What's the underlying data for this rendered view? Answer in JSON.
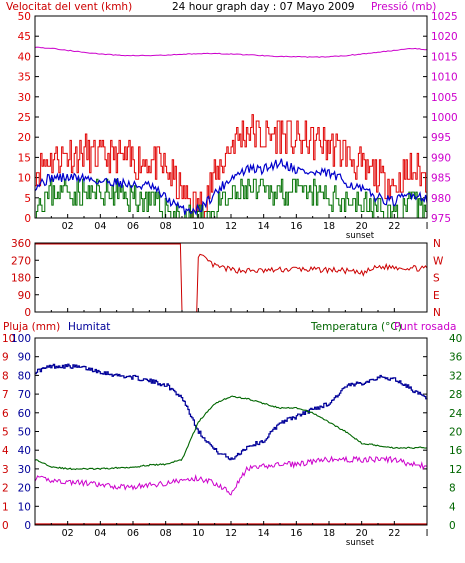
{
  "header": {
    "left_title": "Velocitat del vent (kmh)",
    "center_title": "24 hour graph day : 07 Mayo 2009",
    "right_title": "Pressió (mb)"
  },
  "colors": {
    "wind_gust": "#e00000",
    "wind_avg": "#0000cc",
    "wind_min": "#007000",
    "pressure": "#cc00cc",
    "wind_dir": "#cc0000",
    "humidity": "#000099",
    "temperature": "#006600",
    "dew_point": "#cc00cc",
    "rain": "#cc0000",
    "frame": "#000000",
    "background": "#ffffff"
  },
  "x_axis": {
    "tick_labels": [
      "02",
      "04",
      "06",
      "08",
      "10",
      "12",
      "14",
      "16",
      "18",
      "20",
      "22"
    ],
    "end_marker": "I",
    "sunset_label": "sunset"
  },
  "chart_data": [
    {
      "type": "line",
      "id": "wind-pressure",
      "title": "24 hour graph day : 07 Mayo 2009",
      "ylabel": "Velocitat del vent (kmh)",
      "y2label": "Pressió (mb)",
      "ylim": [
        0,
        50
      ],
      "y2lim": [
        975,
        1025
      ],
      "yticks": [
        0,
        5,
        10,
        15,
        20,
        25,
        30,
        35,
        40,
        45,
        50
      ],
      "y2ticks": [
        975,
        980,
        985,
        990,
        995,
        1000,
        1005,
        1010,
        1015,
        1020,
        1025
      ],
      "x_hours": [
        0,
        1,
        2,
        3,
        4,
        5,
        6,
        7,
        8,
        9,
        10,
        11,
        12,
        13,
        14,
        15,
        16,
        17,
        18,
        19,
        20,
        21,
        22,
        23,
        24
      ],
      "series": [
        {
          "key": "gust",
          "values": [
            12,
            15,
            16,
            16,
            15,
            15,
            14,
            14,
            12,
            6,
            3,
            10,
            18,
            22,
            20,
            21,
            19,
            19,
            18,
            16,
            12,
            10,
            8,
            12,
            10
          ],
          "axis": "left"
        },
        {
          "key": "avg",
          "values": [
            8,
            10,
            10,
            10,
            9,
            9,
            8,
            8,
            5,
            2,
            2,
            6,
            10,
            12,
            12,
            14,
            12,
            11,
            11,
            9,
            7,
            5,
            4,
            6,
            5
          ],
          "axis": "left"
        },
        {
          "key": "min",
          "values": [
            4,
            6,
            7,
            6,
            6,
            6,
            5,
            4,
            2,
            0,
            0,
            2,
            5,
            7,
            6,
            7,
            6,
            6,
            5,
            5,
            3,
            2,
            1,
            3,
            2
          ],
          "axis": "left"
        },
        {
          "key": "pressure",
          "values": [
            1017.3,
            1017.0,
            1016.5,
            1016.0,
            1015.6,
            1015.3,
            1015.2,
            1015.2,
            1015.3,
            1015.5,
            1015.7,
            1015.7,
            1015.6,
            1015.4,
            1015.2,
            1015.0,
            1014.9,
            1014.8,
            1014.9,
            1015.2,
            1015.6,
            1016.0,
            1016.5,
            1017.0,
            1016.7
          ],
          "axis": "right"
        }
      ]
    },
    {
      "type": "line",
      "id": "wind-direction",
      "ylim": [
        0,
        360
      ],
      "yticks": [
        0,
        90,
        180,
        270,
        360
      ],
      "y2ticks": [
        "N",
        "W",
        "S",
        "E",
        "N"
      ],
      "x_hours": [
        0,
        1,
        2,
        3,
        4,
        5,
        6,
        7,
        8,
        9,
        9.5,
        10,
        11,
        12,
        13,
        14,
        15,
        16,
        17,
        18,
        19,
        20,
        21,
        22,
        23,
        24
      ],
      "series": [
        {
          "key": "direction",
          "values": [
            355,
            355,
            355,
            355,
            355,
            355,
            355,
            355,
            355,
            355,
            0,
            300,
            240,
            220,
            215,
            215,
            220,
            225,
            220,
            220,
            215,
            200,
            235,
            235,
            230,
            225
          ]
        }
      ]
    },
    {
      "type": "line",
      "id": "temp-humidity",
      "ylabel": "Pluja (mm)",
      "ylabel2": "Humitat",
      "y2label": "Temperatura (°C)",
      "y2label2": "Punt rosada",
      "ylim": [
        0,
        100
      ],
      "y2lim": [
        0,
        40
      ],
      "yticks_rain": [
        0,
        1,
        2,
        3,
        4,
        5,
        6,
        7,
        8,
        9,
        10
      ],
      "yticks_hum": [
        0,
        10,
        20,
        30,
        40,
        50,
        60,
        70,
        80,
        90,
        100
      ],
      "y2ticks": [
        0,
        4,
        8,
        12,
        16,
        20,
        24,
        28,
        32,
        36,
        40
      ],
      "x_hours": [
        0,
        1,
        2,
        3,
        4,
        5,
        6,
        7,
        8,
        9,
        10,
        11,
        12,
        13,
        14,
        15,
        16,
        17,
        18,
        19,
        20,
        21,
        22,
        23,
        24
      ],
      "series": [
        {
          "key": "humidity",
          "values": [
            82,
            85,
            85,
            84,
            82,
            80,
            79,
            77,
            75,
            68,
            50,
            40,
            35,
            42,
            45,
            55,
            58,
            62,
            65,
            74,
            76,
            79,
            78,
            73,
            67
          ],
          "axis": "left"
        },
        {
          "key": "temperature",
          "values": [
            14,
            12.5,
            12,
            12,
            12,
            12.2,
            12.4,
            12.8,
            13,
            14,
            22,
            26,
            27.5,
            27,
            26,
            25,
            25,
            24,
            22,
            20,
            17.5,
            17,
            16.5,
            16.5,
            16.6
          ],
          "axis": "right"
        },
        {
          "key": "dew_point",
          "values": [
            10,
            9.6,
            9.2,
            9,
            8.5,
            8.2,
            8.2,
            8.5,
            9,
            9.5,
            10,
            9,
            7,
            12,
            12.5,
            13,
            13,
            13.5,
            14,
            14,
            14,
            14,
            14,
            13,
            12.5
          ],
          "axis": "right"
        },
        {
          "key": "rain",
          "values": [
            0,
            0,
            0,
            0,
            0,
            0,
            0,
            0,
            0,
            0,
            0,
            0,
            0,
            0,
            0,
            0,
            0,
            0,
            0,
            0,
            0,
            0,
            0,
            0,
            0
          ],
          "axis": "left"
        }
      ]
    }
  ],
  "panel2": {
    "right_labels": [
      "N",
      "W",
      "S",
      "E",
      "N"
    ]
  },
  "panel3": {
    "label_rain": "Pluja (mm)",
    "label_humidity": "Humitat",
    "label_temperature": "Temperatura (°C)",
    "label_dew": "Punt rosada"
  }
}
